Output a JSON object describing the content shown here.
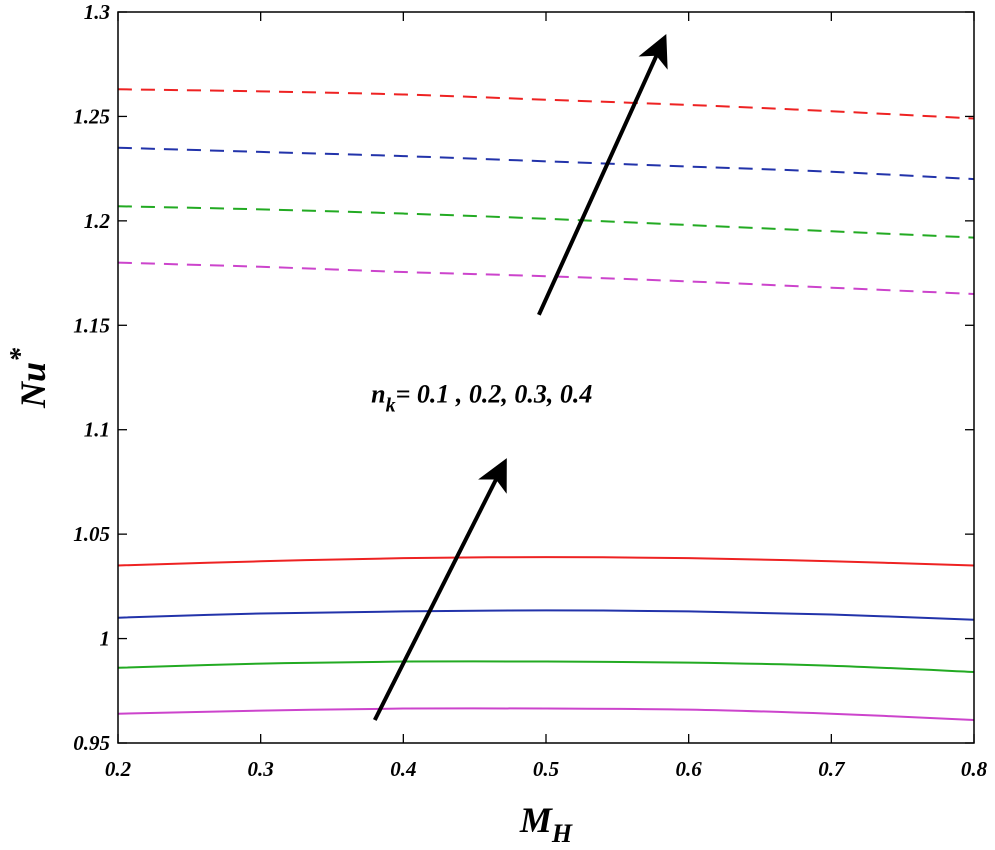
{
  "chart_data": {
    "type": "line",
    "title": "",
    "xlabel": {
      "main": "M",
      "sub": "H"
    },
    "ylabel": {
      "main": "Nu",
      "sup": "*"
    },
    "xlim": [
      0.2,
      0.8
    ],
    "ylim": [
      0.95,
      1.3
    ],
    "xticks": [
      0.2,
      0.3,
      0.4,
      0.5,
      0.6,
      0.7,
      0.8
    ],
    "xtick_labels": [
      "0.2",
      "0.3",
      "0.4",
      "0.5",
      "0.6",
      "0.7",
      "0.8"
    ],
    "yticks": [
      0.95,
      1.0,
      1.05,
      1.1,
      1.15,
      1.2,
      1.25,
      1.3
    ],
    "ytick_labels": [
      "0.95",
      "1",
      "1.05",
      "1.1",
      "1.15",
      "1.2",
      "1.25",
      "1.3"
    ],
    "grid": false,
    "x": [
      0.2,
      0.3,
      0.4,
      0.5,
      0.6,
      0.7,
      0.8
    ],
    "series": [
      {
        "name": "solid n_k=0.1",
        "color": "#cc44cc",
        "style": "solid",
        "values": [
          0.964,
          0.9655,
          0.9665,
          0.9665,
          0.966,
          0.964,
          0.961
        ]
      },
      {
        "name": "solid n_k=0.2",
        "color": "#22aa22",
        "style": "solid",
        "values": [
          0.986,
          0.988,
          0.989,
          0.989,
          0.9885,
          0.987,
          0.984
        ]
      },
      {
        "name": "solid n_k=0.3",
        "color": "#2233aa",
        "style": "solid",
        "values": [
          1.01,
          1.012,
          1.013,
          1.0135,
          1.013,
          1.0115,
          1.009
        ]
      },
      {
        "name": "solid n_k=0.4",
        "color": "#ee2222",
        "style": "solid",
        "values": [
          1.035,
          1.037,
          1.0385,
          1.039,
          1.0385,
          1.037,
          1.035
        ]
      },
      {
        "name": "dashed n_k=0.1",
        "color": "#cc44cc",
        "style": "dashed",
        "values": [
          1.18,
          1.178,
          1.1755,
          1.1735,
          1.171,
          1.168,
          1.165
        ]
      },
      {
        "name": "dashed n_k=0.2",
        "color": "#22aa22",
        "style": "dashed",
        "values": [
          1.207,
          1.2055,
          1.2035,
          1.201,
          1.198,
          1.195,
          1.192
        ]
      },
      {
        "name": "dashed n_k=0.3",
        "color": "#2233aa",
        "style": "dashed",
        "values": [
          1.235,
          1.233,
          1.231,
          1.2285,
          1.226,
          1.2235,
          1.22
        ]
      },
      {
        "name": "dashed n_k=0.4",
        "color": "#ee2222",
        "style": "dashed",
        "values": [
          1.263,
          1.262,
          1.2605,
          1.258,
          1.2555,
          1.2525,
          1.249
        ]
      }
    ],
    "annotations": [
      {
        "label_main": "n",
        "label_sub": "k",
        "label_rest": "= 0.1 , 0.2, 0.3, 0.4",
        "x": 0.455,
        "y": 1.113
      },
      {
        "type": "arrow",
        "from": [
          0.38,
          0.961
        ],
        "to": [
          0.47,
          1.083
        ]
      },
      {
        "type": "arrow",
        "from": [
          0.495,
          1.155
        ],
        "to": [
          0.582,
          1.286
        ]
      }
    ]
  }
}
